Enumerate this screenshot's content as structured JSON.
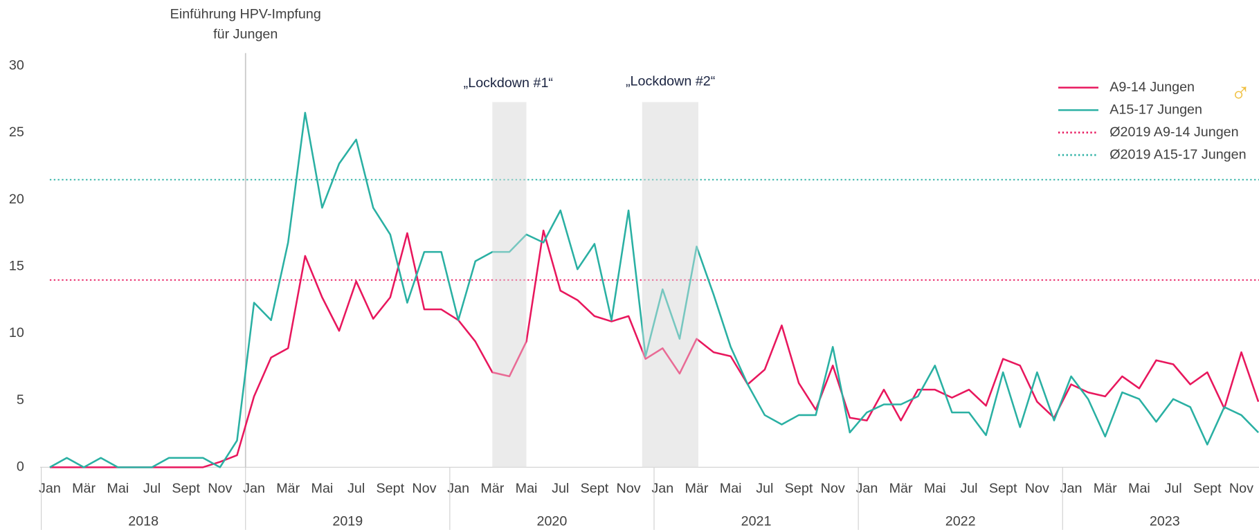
{
  "chart_data": {
    "type": "line",
    "categories": [
      "Jan",
      null,
      "Mär",
      null,
      "Mai",
      null,
      "Jul",
      null,
      "Sept",
      null,
      "Nov",
      null,
      "Jan",
      null,
      "Mär",
      null,
      "Mai",
      null,
      "Jul",
      null,
      "Sept",
      null,
      "Nov",
      null,
      "Jan",
      null,
      "Mär",
      null,
      "Mai",
      null,
      "Jul",
      null,
      "Sept",
      null,
      "Nov",
      null,
      "Jan",
      null,
      "Mär",
      null,
      "Mai",
      null,
      "Jul",
      null,
      "Sept",
      null,
      "Nov",
      null,
      "Jan",
      null,
      "Mär",
      null,
      "Mai",
      null,
      "Jul",
      null,
      "Sept",
      null,
      "Nov",
      null,
      "Jan",
      null,
      "Mär",
      null,
      "Mai",
      null,
      "Jul",
      null,
      "Sept",
      null,
      "Nov",
      null
    ],
    "years": [
      "2018",
      "2019",
      "2020",
      "2021",
      "2022",
      "2023"
    ],
    "series": [
      {
        "name": "A9-14 Jungen",
        "color": "#e8175d",
        "values": [
          0,
          0,
          0,
          0,
          0,
          0,
          0,
          0,
          0,
          0,
          0.4,
          0.9,
          5.3,
          8.2,
          8.9,
          15.8,
          12.7,
          10.2,
          13.9,
          11.1,
          12.7,
          17.5,
          11.8,
          11.8,
          11,
          9.4,
          7.1,
          6.8,
          9.4,
          17.7,
          13.2,
          12.5,
          11.3,
          10.9,
          11.3,
          8.1,
          8.9,
          7.0,
          9.6,
          8.6,
          8.3,
          6.2,
          7.3,
          10.6,
          6.3,
          4.3,
          7.6,
          3.7,
          3.5,
          5.8,
          3.5,
          5.8,
          5.8,
          5.2,
          5.8,
          4.6,
          8.1,
          7.6,
          4.9,
          3.7,
          6.2,
          5.6,
          5.3,
          6.8,
          5.9,
          8.0,
          7.7,
          6.2,
          7.1,
          4.4,
          8.6,
          4.9
        ]
      },
      {
        "name": "A15-17 Jungen",
        "color": "#2ab0a3",
        "values": [
          0,
          0.7,
          0,
          0.7,
          0,
          0,
          0,
          0.7,
          0.7,
          0.7,
          0,
          2.0,
          12.3,
          11.0,
          16.8,
          26.5,
          19.4,
          22.7,
          24.5,
          19.4,
          17.4,
          12.3,
          16.1,
          16.1,
          11.0,
          15.4,
          16.1,
          16.1,
          17.4,
          16.8,
          19.2,
          14.8,
          16.7,
          11.0,
          19.2,
          8.3,
          13.3,
          9.6,
          16.5,
          12.9,
          9.0,
          6.2,
          3.9,
          3.2,
          3.9,
          3.9,
          9.0,
          2.6,
          4.1,
          4.7,
          4.7,
          5.3,
          7.6,
          4.1,
          4.1,
          2.4,
          7.1,
          3.0,
          7.1,
          3.5,
          6.8,
          5.1,
          2.3,
          5.6,
          5.1,
          3.4,
          5.1,
          4.5,
          1.7,
          4.5,
          3.9,
          2.6
        ]
      }
    ],
    "reference_lines": [
      {
        "name": "Ø2019 A9-14 Jungen",
        "value": 14.0,
        "color": "#e8175d",
        "style": "dotted"
      },
      {
        "name": "Ø2019 A15-17 Jungen",
        "value": 21.5,
        "color": "#2ab0a3",
        "style": "dotted"
      }
    ],
    "annotations": {
      "vaccination": [
        "Einführung HPV-Impfung",
        "für Jungen"
      ],
      "lockdown1": "„Lockdown #1“",
      "lockdown2": "„Lockdown #2“"
    },
    "legend_symbol": "♂",
    "ylim": [
      0,
      30
    ],
    "yticks": [
      0,
      5,
      10,
      15,
      20,
      25,
      30
    ],
    "grid": false,
    "legend": "upper right"
  }
}
